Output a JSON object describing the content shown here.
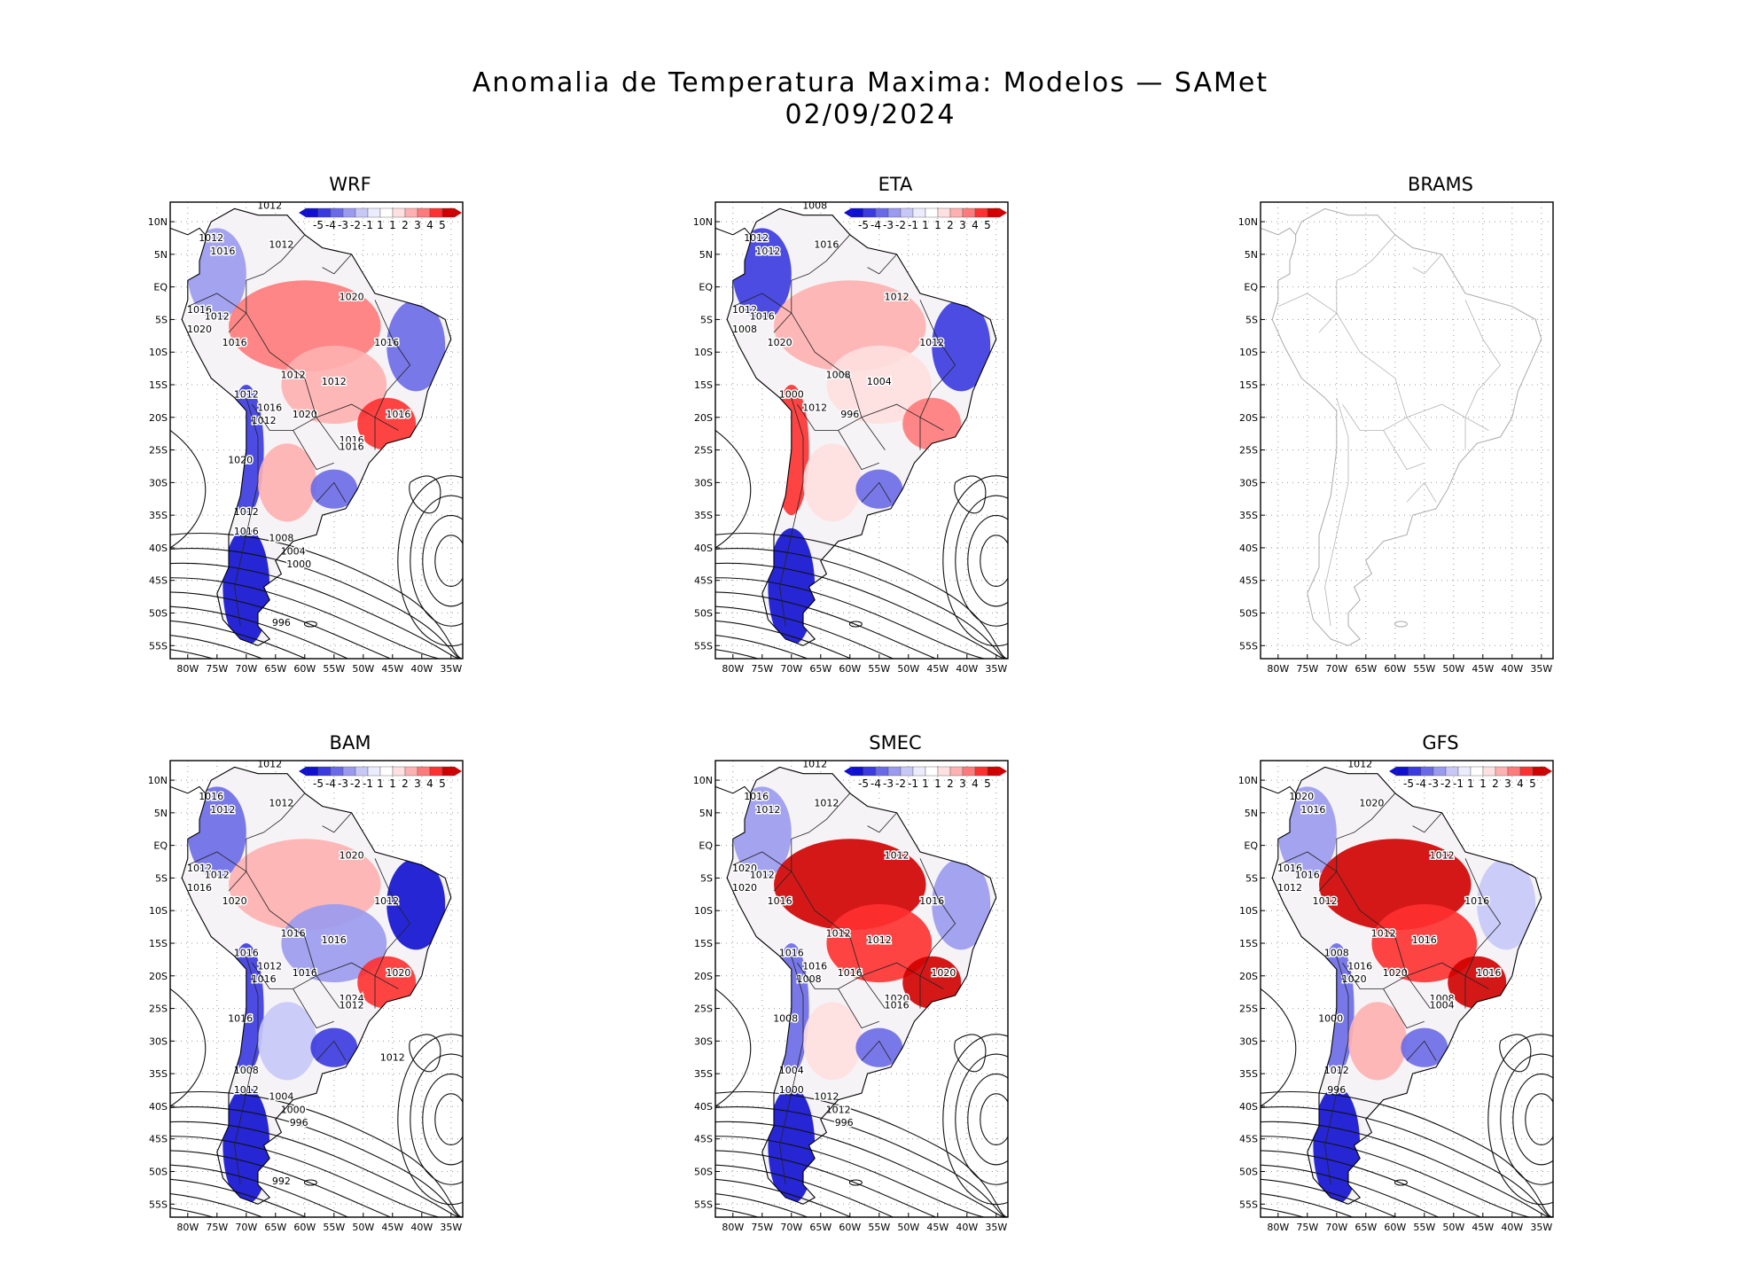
{
  "title": {
    "line1": "Anomalia de Temperatura Maxima: Modelos — SAMet",
    "line2": "02/09/2024"
  },
  "axes": {
    "lat_labels": [
      "10N",
      "5N",
      "EQ",
      "5S",
      "10S",
      "15S",
      "20S",
      "25S",
      "30S",
      "35S",
      "40S",
      "45S",
      "50S",
      "55S"
    ],
    "lat_values": [
      10,
      5,
      0,
      -5,
      -10,
      -15,
      -20,
      -25,
      -30,
      -35,
      -40,
      -45,
      -50,
      -55
    ],
    "lon_labels": [
      "80W",
      "75W",
      "70W",
      "65W",
      "60W",
      "55W",
      "50W",
      "45W",
      "40W",
      "35W"
    ],
    "lon_values": [
      -80,
      -75,
      -70,
      -65,
      -60,
      -55,
      -50,
      -45,
      -40,
      -35
    ],
    "lon_range": [
      -83,
      -33
    ],
    "lat_range": [
      -57,
      13
    ]
  },
  "colorbar": {
    "labels": [
      "-5",
      "-4",
      "-3",
      "-2",
      "-1",
      "1",
      "1",
      "2",
      "3",
      "4",
      "5"
    ],
    "colors": [
      "#1010d0",
      "#3a3ae0",
      "#6a6ae8",
      "#9a9af0",
      "#c8c8f8",
      "#ececff",
      "#ffffff",
      "#ffe0e0",
      "#ffb0b0",
      "#ff7a7a",
      "#ff3030",
      "#d00000"
    ]
  },
  "panels": [
    {
      "name": "WRF",
      "has_data": true,
      "isobars": [
        "1012",
        "1012",
        "1016",
        "1012",
        "1020",
        "1016",
        "1012",
        "1020",
        "1016",
        "1016",
        "1012",
        "1012",
        "1012",
        "1016",
        "1020",
        "1012",
        "1016",
        "1016",
        "1016",
        "1020",
        "1012",
        "1016",
        "1008",
        "1004",
        "1000",
        "996"
      ]
    },
    {
      "name": "ETA",
      "has_data": true,
      "isobars": [
        "1008",
        "1012",
        "1012",
        "1016",
        "1012",
        "1012",
        "1016",
        "1008",
        "1020",
        "1012",
        "1008",
        "1004",
        "1000",
        "1012",
        "996"
      ]
    },
    {
      "name": "BRAMS",
      "has_data": false,
      "isobars": []
    },
    {
      "name": "BAM",
      "has_data": true,
      "isobars": [
        "1012",
        "1016",
        "1012",
        "1012",
        "1020",
        "1012",
        "1012",
        "1016",
        "1020",
        "1012",
        "1016",
        "1016",
        "1016",
        "1012",
        "1016",
        "1016",
        "1020",
        "1024",
        "1012",
        "1016",
        "1008",
        "1012",
        "1004",
        "1000",
        "996",
        "992",
        "1012"
      ]
    },
    {
      "name": "SMEC",
      "has_data": true,
      "isobars": [
        "1012",
        "1016",
        "1012",
        "1012",
        "1012",
        "1020",
        "1012",
        "1020",
        "1016",
        "1016",
        "1012",
        "1012",
        "1016",
        "1016",
        "1016",
        "1008",
        "1020",
        "1020",
        "1016",
        "1008",
        "1004",
        "1000",
        "1012",
        "1012",
        "996"
      ]
    },
    {
      "name": "GFS",
      "has_data": true,
      "isobars": [
        "1012",
        "1020",
        "1016",
        "1020",
        "1012",
        "1016",
        "1016",
        "1012",
        "1012",
        "1016",
        "1012",
        "1016",
        "1008",
        "1016",
        "1020",
        "1020",
        "1016",
        "1008",
        "1004",
        "1000",
        "1012",
        "996"
      ]
    }
  ],
  "anomaly_fields": {
    "WRF": [
      [
        "nw-coast",
        -2
      ],
      [
        "amazon",
        3
      ],
      [
        "central",
        2
      ],
      [
        "northeast",
        -3
      ],
      [
        "southeast",
        4
      ],
      [
        "andes",
        -4
      ],
      [
        "argentina",
        2
      ],
      [
        "uruguay",
        -3
      ],
      [
        "patagonia",
        -5
      ]
    ],
    "ETA": [
      [
        "nw-coast",
        -4
      ],
      [
        "amazon",
        2
      ],
      [
        "central",
        1
      ],
      [
        "northeast",
        -4
      ],
      [
        "southeast",
        3
      ],
      [
        "andes",
        4
      ],
      [
        "argentina",
        1
      ],
      [
        "uruguay",
        -3
      ],
      [
        "patagonia",
        -5
      ]
    ],
    "BAM": [
      [
        "nw-coast",
        -3
      ],
      [
        "amazon",
        2
      ],
      [
        "central",
        -2
      ],
      [
        "northeast",
        -5
      ],
      [
        "southeast",
        4
      ],
      [
        "andes",
        -4
      ],
      [
        "argentina",
        -1
      ],
      [
        "uruguay",
        -4
      ],
      [
        "patagonia",
        -5
      ]
    ],
    "SMEC": [
      [
        "nw-coast",
        -2
      ],
      [
        "amazon",
        5
      ],
      [
        "central",
        4
      ],
      [
        "northeast",
        -2
      ],
      [
        "southeast",
        5
      ],
      [
        "andes",
        -3
      ],
      [
        "argentina",
        1
      ],
      [
        "uruguay",
        -3
      ],
      [
        "patagonia",
        -5
      ]
    ],
    "GFS": [
      [
        "nw-coast",
        -2
      ],
      [
        "amazon",
        5
      ],
      [
        "central",
        4
      ],
      [
        "northeast",
        -1
      ],
      [
        "southeast",
        5
      ],
      [
        "andes",
        -3
      ],
      [
        "argentina",
        2
      ],
      [
        "uruguay",
        -3
      ],
      [
        "patagonia",
        -5
      ]
    ]
  }
}
